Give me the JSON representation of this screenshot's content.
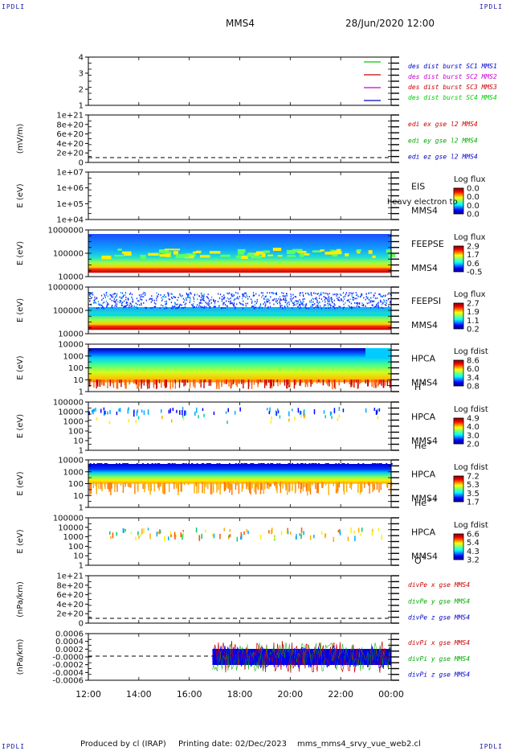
{
  "header": {
    "corner_label": "IPDLI",
    "spacecraft": "MMS4",
    "datetime": "28/Jun/2020 12:00"
  },
  "footer": {
    "produced_by": "Produced by cl (IRAP)",
    "printing_date": "Printing date: 02/Dec/2023",
    "file_name": "mms_mms4_srvy_vue_web2.cl"
  },
  "colors": {
    "sc1": "#00cc00",
    "sc2": "#cc0000",
    "sc3": "#cc00cc",
    "sc4": "#0000cc"
  },
  "chart_data": [
    {
      "type": "line",
      "panel": "burst-status",
      "ylabel": "",
      "yticks": [
        "4",
        "3",
        "2",
        "1"
      ],
      "ylim": [
        0.5,
        4.5
      ],
      "series": [
        {
          "name": "des dist burst SC1 MMS1",
          "color": "#00cc00",
          "y": 4
        },
        {
          "name": "des dist burst SC2 MMS2",
          "color": "#cc0000",
          "y": 3
        },
        {
          "name": "des dist burst SC3 MMS3",
          "color": "#cc00cc",
          "y": 2
        },
        {
          "name": "des dist burst SC4 MMS4",
          "color": "#0000cc",
          "y": 1
        }
      ],
      "legend_colors": [
        "#0000cc",
        "#cc00cc",
        "#cc0000",
        "#00cc00"
      ]
    },
    {
      "type": "line",
      "panel": "edi-e-field",
      "ylabel": "(mV/m)",
      "yticks": [
        "1e+21",
        "8e+20",
        "6e+20",
        "4e+20",
        "2e+20",
        "0"
      ],
      "series": [
        {
          "name": "edi ex gse l2 MMS4",
          "color": "#cc0000"
        },
        {
          "name": "edi ey gse l2 MMS4",
          "color": "#00aa00"
        },
        {
          "name": "edi ez gse l2 MMS4",
          "color": "#0000cc"
        }
      ],
      "zero_line": true
    },
    {
      "type": "heatmap",
      "panel": "eis",
      "ylabel": "E (eV)",
      "yticks": [
        "1e+07",
        "1e+06",
        "1e+05",
        "1e+04"
      ],
      "instrument": [
        "EIS",
        "MMS4"
      ],
      "overlay_text": "heavy electron to",
      "colorbar_title": "Log flux",
      "colorbar_ticks": [
        "0.0",
        "0.0",
        "0.0",
        "0.0"
      ]
    },
    {
      "type": "heatmap",
      "panel": "feeps-electron",
      "ylabel": "E (eV)",
      "yticks": [
        "1000000",
        "100000",
        "10000"
      ],
      "instrument": [
        "FEEPSE",
        "MMS4"
      ],
      "colorbar_title": "Log flux",
      "colorbar_ticks": [
        "2.9",
        "1.7",
        "0.6",
        "-0.5"
      ]
    },
    {
      "type": "heatmap",
      "panel": "feeps-ion",
      "ylabel": "E (eV)",
      "yticks": [
        "1000000",
        "100000",
        "10000"
      ],
      "instrument": [
        "FEEPSI",
        "MMS4"
      ],
      "colorbar_title": "Log flux",
      "colorbar_ticks": [
        "2.7",
        "1.9",
        "1.1",
        "0.2"
      ]
    },
    {
      "type": "heatmap",
      "panel": "hpca-h",
      "ylabel": "E (eV)",
      "yticks": [
        "10000",
        "1000",
        "100",
        "10",
        "1"
      ],
      "instrument": [
        "HPCA",
        "MMS4"
      ],
      "species": "H",
      "species_sup": "+",
      "colorbar_title": "Log fdist",
      "colorbar_ticks": [
        "8.6",
        "6.0",
        "3.4",
        "0.8"
      ]
    },
    {
      "type": "heatmap",
      "panel": "hpca-he",
      "ylabel": "E (eV)",
      "yticks": [
        "100000",
        "10000",
        "1000",
        "100",
        "10",
        "1"
      ],
      "instrument": [
        "HPCA",
        "MMS4"
      ],
      "species": "He",
      "species_sup": "+",
      "colorbar_title": "Log fdist",
      "colorbar_ticks": [
        "4.9",
        "4.0",
        "3.0",
        "2.0"
      ]
    },
    {
      "type": "heatmap",
      "panel": "hpca-hepp",
      "ylabel": "E (eV)",
      "yticks": [
        "10000",
        "1000",
        "100",
        "10",
        "1"
      ],
      "instrument": [
        "HPCA",
        "MMS4"
      ],
      "species": "He",
      "species_sup": "++",
      "colorbar_title": "Log fdist",
      "colorbar_ticks": [
        "7.2",
        "5.3",
        "3.5",
        "1.7"
      ]
    },
    {
      "type": "heatmap",
      "panel": "hpca-o",
      "ylabel": "E (eV)",
      "yticks": [
        "100000",
        "10000",
        "1000",
        "100",
        "10",
        "1"
      ],
      "instrument": [
        "HPCA",
        "MMS4"
      ],
      "species": "O",
      "species_sup": "+",
      "colorbar_title": "Log fdist",
      "colorbar_ticks": [
        "6.6",
        "5.4",
        "4.3",
        "3.2"
      ]
    },
    {
      "type": "line",
      "panel": "divpe",
      "ylabel": "(nPa/km)",
      "yticks": [
        "1e+21",
        "8e+20",
        "6e+20",
        "4e+20",
        "2e+20",
        "0"
      ],
      "series": [
        {
          "name": "divPe x gse MMS4",
          "color": "#cc0000"
        },
        {
          "name": "divPe y gse MMS4",
          "color": "#00aa00"
        },
        {
          "name": "divPe z gse MMS4",
          "color": "#0000cc"
        }
      ],
      "zero_line": true
    },
    {
      "type": "line",
      "panel": "divpi",
      "ylabel": "(nPa/km)",
      "yticks": [
        "0.0006",
        "0.0004",
        "0.0002",
        "-0.0000",
        "-0.0002",
        "-0.0004",
        "-0.0006"
      ],
      "ylim": [
        -0.0006,
        0.0006
      ],
      "series": [
        {
          "name": "divPi x gse MMS4",
          "color": "#cc0000"
        },
        {
          "name": "divPi y gse MMS4",
          "color": "#00aa00"
        },
        {
          "name": "divPi z gse MMS4",
          "color": "#0000cc"
        }
      ],
      "data_start": "16:55",
      "zero_line": true
    }
  ],
  "time_axis": {
    "ticks": [
      "12:00",
      "14:00",
      "16:00",
      "18:00",
      "20:00",
      "22:00",
      "00:00"
    ]
  }
}
